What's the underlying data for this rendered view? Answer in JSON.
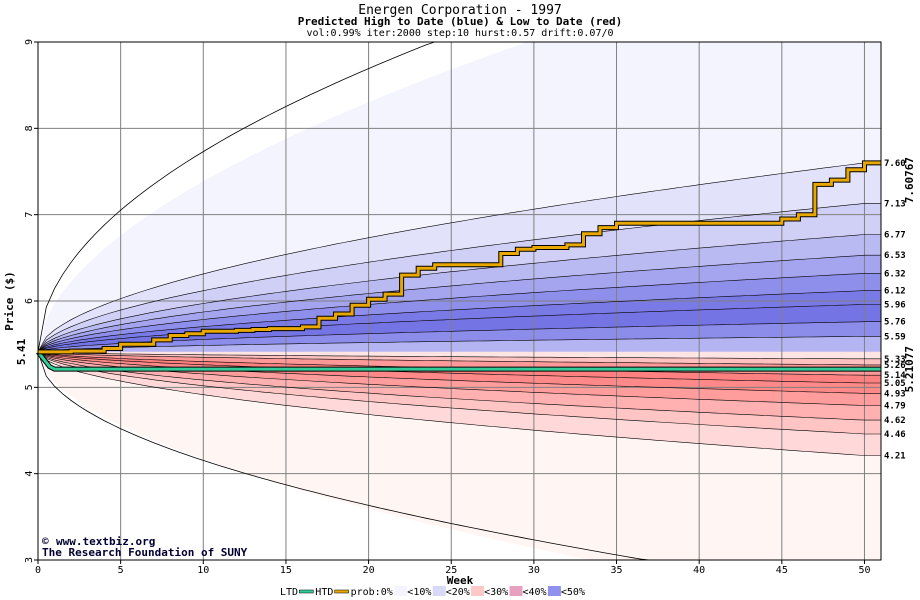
{
  "chart_data": {
    "type": "area",
    "title": "Energen Corporation - 1997",
    "subtitle": "Predicted High to Date (blue) &  Low to Date (red)",
    "params": "vol:0.99% iter:2000 step:10 hurst:0.57 drift:0.07/0",
    "xlabel": "Week",
    "ylabel": "Price ($)",
    "xlim": [
      0,
      51
    ],
    "ylim": [
      3,
      9
    ],
    "x_ticks": [
      0,
      5,
      10,
      15,
      20,
      25,
      30,
      35,
      40,
      45,
      50
    ],
    "y_ticks": [
      3,
      4,
      5,
      6,
      7,
      8,
      9
    ],
    "grid": true,
    "start_price_label": "5.41",
    "start_price": 5.41,
    "end_high_label": "7.60767",
    "end_high_label_color": "#b8860b",
    "end_low_label": "5.21077",
    "end_low_label_color": "#009966",
    "high_quantile_labels": [
      "7.60",
      "7.13",
      "6.77",
      "6.53",
      "6.32",
      "6.12",
      "5.96",
      "5.76",
      "5.59"
    ],
    "high_quantile_values": [
      7.6,
      7.13,
      6.77,
      6.53,
      6.32,
      6.12,
      5.96,
      5.76,
      5.59
    ],
    "low_quantile_labels": [
      "5.33",
      "5.26",
      "5.14",
      "5.05",
      "4.93",
      "4.79",
      "4.62",
      "4.46",
      "4.21"
    ],
    "low_quantile_values": [
      5.33,
      5.26,
      5.14,
      5.05,
      4.93,
      4.79,
      4.62,
      4.46,
      4.21
    ],
    "high_envelope_max": 9.0,
    "high_envelope_max_at_week": 29,
    "low_envelope_min": 3.0,
    "low_envelope_min_at_week": 40,
    "htd_path": [
      [
        0,
        5.41
      ],
      [
        1,
        5.41
      ],
      [
        2,
        5.42
      ],
      [
        3,
        5.42
      ],
      [
        4,
        5.45
      ],
      [
        5,
        5.5
      ],
      [
        6,
        5.5
      ],
      [
        7,
        5.55
      ],
      [
        8,
        5.6
      ],
      [
        9,
        5.62
      ],
      [
        10,
        5.65
      ],
      [
        11,
        5.65
      ],
      [
        12,
        5.66
      ],
      [
        13,
        5.67
      ],
      [
        14,
        5.68
      ],
      [
        15,
        5.68
      ],
      [
        16,
        5.7
      ],
      [
        17,
        5.8
      ],
      [
        18,
        5.85
      ],
      [
        19,
        5.95
      ],
      [
        20,
        6.02
      ],
      [
        21,
        6.08
      ],
      [
        22,
        6.3
      ],
      [
        23,
        6.38
      ],
      [
        24,
        6.42
      ],
      [
        25,
        6.42
      ],
      [
        26,
        6.42
      ],
      [
        27,
        6.42
      ],
      [
        28,
        6.55
      ],
      [
        29,
        6.6
      ],
      [
        30,
        6.62
      ],
      [
        31,
        6.62
      ],
      [
        32,
        6.65
      ],
      [
        33,
        6.78
      ],
      [
        34,
        6.85
      ],
      [
        35,
        6.9
      ],
      [
        36,
        6.9
      ],
      [
        37,
        6.9
      ],
      [
        38,
        6.9
      ],
      [
        39,
        6.9
      ],
      [
        40,
        6.9
      ],
      [
        41,
        6.9
      ],
      [
        42,
        6.9
      ],
      [
        43,
        6.9
      ],
      [
        44,
        6.9
      ],
      [
        45,
        6.95
      ],
      [
        46,
        7.0
      ],
      [
        47,
        7.35
      ],
      [
        48,
        7.4
      ],
      [
        49,
        7.52
      ],
      [
        50,
        7.6
      ],
      [
        51,
        7.6
      ]
    ],
    "ltd_path": [
      [
        0,
        5.41
      ],
      [
        0.7,
        5.24
      ],
      [
        1,
        5.21077
      ],
      [
        51,
        5.21077
      ]
    ],
    "band_colors_high": [
      "#f4f4ff",
      "#e2e2fb",
      "#d0d0f7",
      "#babaf3",
      "#a4a4ef",
      "#8e8eeb",
      "#7a7ae7",
      "#7474e4",
      "#8c8cea",
      "#b4b4f2",
      "#dcdcfa"
    ],
    "band_colors_low": [
      "#fff6f4",
      "#ffd9d9",
      "#ffc4c4",
      "#ffb0b0",
      "#ff9c9c",
      "#ff8888",
      "#ff8080",
      "#ff9898",
      "#ffc0c0",
      "#ffe4e4"
    ],
    "legend": {
      "ltd_label": "LTD",
      "htd_label": "HTD",
      "prob_label": "prob:0%",
      "items": [
        "<10%",
        "<20%",
        "<30%",
        "<40%",
        "<50%"
      ],
      "item_colors": [
        "#f4f4ff",
        "#d8d8f8",
        "#ffc8c8",
        "#e8a0c0",
        "#9090ee"
      ],
      "ltd_color": "#33cc99",
      "htd_color": "#e8a800"
    },
    "credit": {
      "line1": "www.textbiz.org",
      "line2": "The Research Foundation of SUNY",
      "symbol": "©"
    }
  }
}
